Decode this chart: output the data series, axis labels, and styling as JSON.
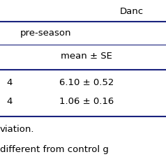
{
  "header_top": "Danc",
  "subheader": "pre-season",
  "col_header": "mean ± SE",
  "row1_left": "4",
  "row1_value": "6.10 ± 0.52",
  "row2_left": "4",
  "row2_value": "1.06 ± 0.16",
  "footnote1": "viation.",
  "footnote2": "different from control g",
  "line_color": "#1a237e",
  "bg_color": "#ffffff",
  "text_color": "#000000",
  "font_size": 9.5,
  "fig_width": 2.38,
  "fig_height": 2.38,
  "dpi": 100
}
